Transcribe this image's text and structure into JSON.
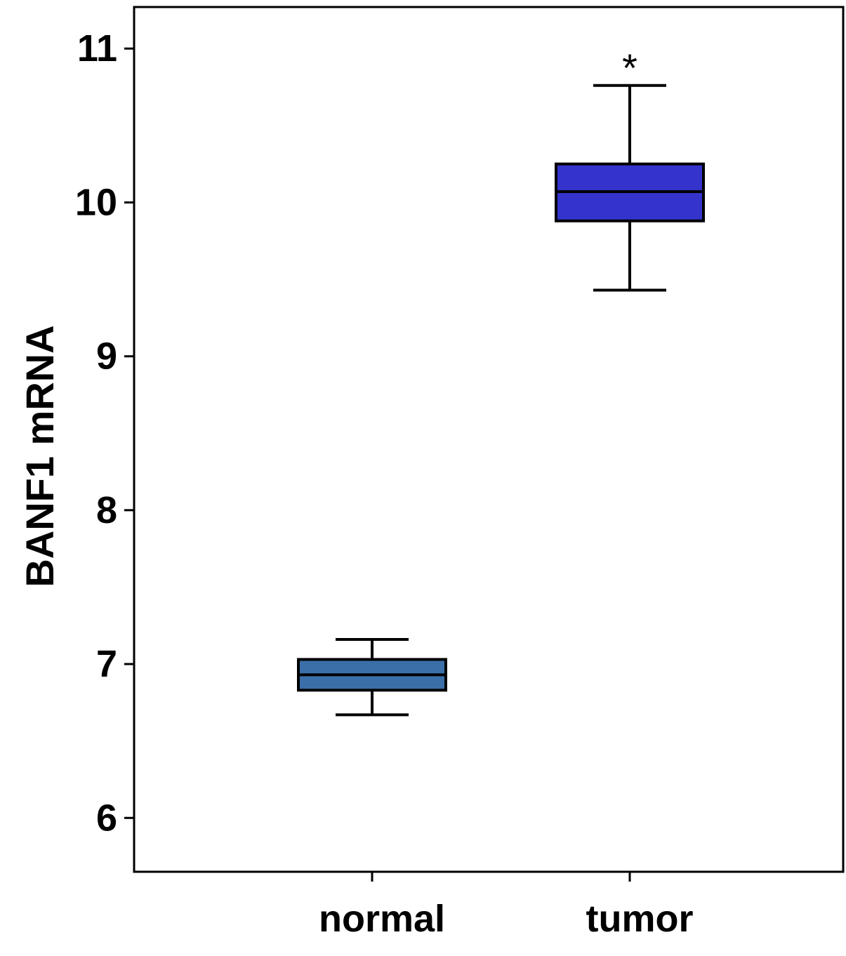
{
  "chart_data": {
    "type": "box",
    "title": "",
    "xlabel": "",
    "ylabel": "BANF1 mRNA",
    "ylim": [
      5.65,
      11.27
    ],
    "yticks": [
      6,
      7,
      8,
      9,
      10,
      11
    ],
    "ytick_labels": [
      "6",
      "7",
      "8",
      "9",
      "10",
      "11"
    ],
    "grid": false,
    "legend": "none",
    "categories": [
      "normal",
      "tumor"
    ],
    "boxes": [
      {
        "category": "normal",
        "whisker_low": 6.67,
        "q1": 6.83,
        "median": 6.93,
        "q3": 7.03,
        "whisker_high": 7.16,
        "color": "#3b6fa8",
        "annotation": ""
      },
      {
        "category": "tumor",
        "whisker_low": 9.43,
        "q1": 9.88,
        "median": 10.07,
        "q3": 10.25,
        "whisker_high": 10.76,
        "color": "#3434cc",
        "annotation": "*"
      }
    ]
  }
}
